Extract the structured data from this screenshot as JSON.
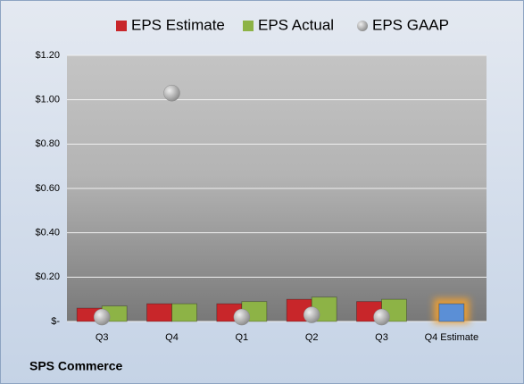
{
  "chart_data": {
    "type": "bar",
    "title": "SPS Commerce",
    "categories": [
      "Q3",
      "Q4",
      "Q1",
      "Q2",
      "Q3",
      "Q4 Estimate"
    ],
    "series": [
      {
        "name": "EPS Estimate",
        "color": "#c8262a",
        "values": [
          0.06,
          0.08,
          0.08,
          0.1,
          0.09,
          0.08
        ],
        "colors": [
          "#c8262a",
          "#c8262a",
          "#c8262a",
          "#c8262a",
          "#c8262a",
          "#5b8fd6"
        ]
      },
      {
        "name": "EPS Actual",
        "color": "#8db346",
        "values": [
          0.07,
          0.08,
          0.09,
          0.11,
          0.1,
          null
        ]
      },
      {
        "name": "EPS GAAP",
        "color": "#a6a6a6",
        "marker": "circle",
        "values": [
          0.02,
          1.03,
          0.02,
          0.03,
          0.02,
          null
        ]
      }
    ],
    "ylim": [
      0,
      1.2
    ],
    "yticks": [
      {
        "value": 0,
        "label": "$-"
      },
      {
        "value": 0.2,
        "label": "$0.20"
      },
      {
        "value": 0.4,
        "label": "$0.40"
      },
      {
        "value": 0.6,
        "label": "$0.60"
      },
      {
        "value": 0.8,
        "label": "$0.80"
      },
      {
        "value": 1.0,
        "label": "$1.00"
      },
      {
        "value": 1.2,
        "label": "$1.20"
      }
    ],
    "grid": true,
    "legend": "top"
  }
}
